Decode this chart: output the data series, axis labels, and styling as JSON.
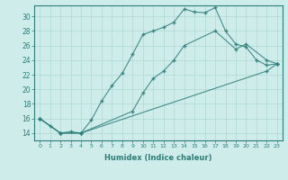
{
  "xlabel": "Humidex (Indice chaleur)",
  "bg_color": "#cdecea",
  "line_color": "#2d7d78",
  "grid_color": "#aed8d5",
  "xlim": [
    -0.5,
    23.5
  ],
  "ylim": [
    13,
    31.5
  ],
  "xticks": [
    0,
    1,
    2,
    3,
    4,
    5,
    6,
    7,
    8,
    9,
    10,
    11,
    12,
    13,
    14,
    15,
    16,
    17,
    18,
    19,
    20,
    21,
    22,
    23
  ],
  "yticks": [
    14,
    16,
    18,
    20,
    22,
    24,
    26,
    28,
    30
  ],
  "line1": {
    "x": [
      0,
      1,
      2,
      3,
      4,
      5,
      6,
      7,
      8,
      9,
      10,
      11,
      12,
      13,
      14,
      15,
      16,
      17,
      18,
      19,
      20,
      21,
      22,
      23
    ],
    "y": [
      16.0,
      15.0,
      14.0,
      14.2,
      14.0,
      15.8,
      18.4,
      20.5,
      22.2,
      24.8,
      27.5,
      28.0,
      28.5,
      29.2,
      31.0,
      30.6,
      30.5,
      31.2,
      28.0,
      26.2,
      25.8,
      24.0,
      23.3,
      23.5
    ]
  },
  "line2": {
    "x": [
      0,
      2,
      4,
      9,
      10,
      11,
      12,
      13,
      14,
      17,
      19,
      20,
      22,
      23
    ],
    "y": [
      16.0,
      14.0,
      14.0,
      17.0,
      19.5,
      21.5,
      22.5,
      24.0,
      26.0,
      28.0,
      25.5,
      26.2,
      24.0,
      23.5
    ]
  },
  "line3": {
    "x": [
      0,
      2,
      4,
      22,
      23
    ],
    "y": [
      16.0,
      14.0,
      14.0,
      22.5,
      23.5
    ]
  }
}
